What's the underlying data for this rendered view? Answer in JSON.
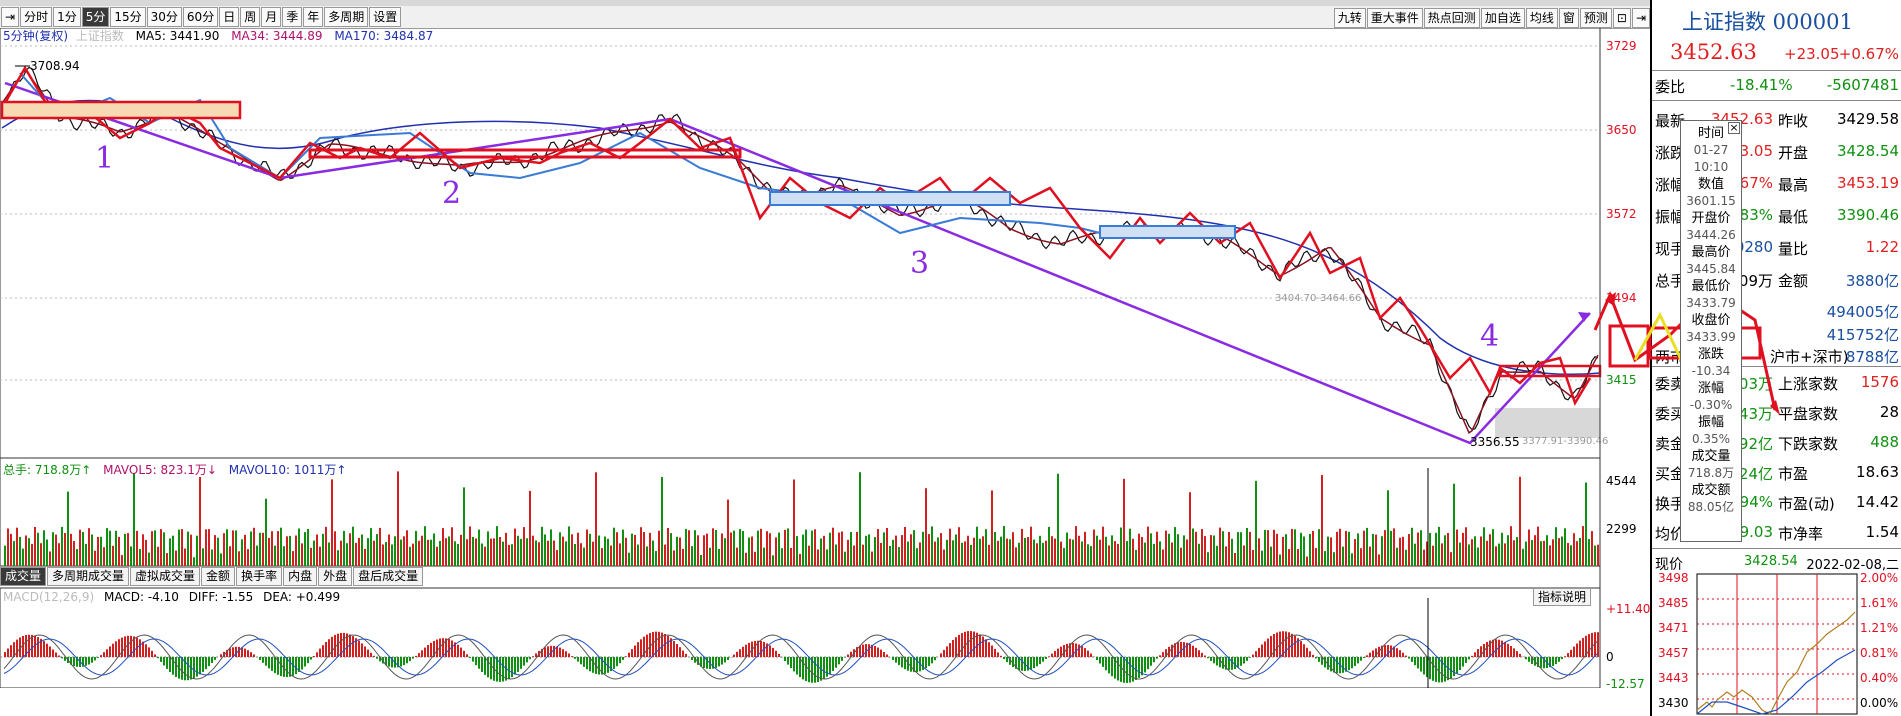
{
  "toolbar": {
    "periods": [
      "分时",
      "1分",
      "5分",
      "15分",
      "30分",
      "60分",
      "日",
      "周",
      "月",
      "季",
      "年",
      "多周期",
      "设置"
    ],
    "active_period": "5分",
    "right_buttons": [
      "九转",
      "重大事件",
      "热点回测",
      "加自选",
      "均线",
      "窗",
      "预测"
    ]
  },
  "main_chart": {
    "legend_period": "5分钟(复权)",
    "legend_index": "上证指数",
    "ma5": "MA5: 3441.90",
    "ma34": "MA34: 3444.89",
    "ma170": "MA170: 3484.87",
    "high_label": "3708.94",
    "low_label": "3356.55",
    "ref_label": "3404.70-3464.66",
    "ref_label2": "3377.91-3390.46",
    "y_ticks": [
      "3729",
      "3650",
      "3572",
      "3494",
      "3415"
    ],
    "wave_labels": [
      "1",
      "2",
      "3",
      "4"
    ]
  },
  "volume_chart": {
    "legend_total": "总手: 718.8万↑",
    "legend_mavol5": "MAVOL5: 823.1万↓",
    "legend_mavol10": "MAVOL10: 1011万↑",
    "y_ticks": [
      "4544",
      "2299"
    ]
  },
  "subtabs": {
    "items": [
      "成交量",
      "多周期成交量",
      "虚拟成交量",
      "金额",
      "换手率",
      "内盘",
      "外盘",
      "盘后成交量"
    ],
    "active": "成交量"
  },
  "macd_chart": {
    "legend_name": "MACD(12,26,9)",
    "legend_macd": "MACD: -4.10",
    "legend_diff": "DIFF: -1.55",
    "legend_dea": "DEA: +0.499",
    "help_button": "指标说明",
    "y_ticks": [
      "+11.40",
      "0",
      "-12.57"
    ]
  },
  "popup": {
    "time_label": "时间",
    "date": "01-27",
    "time": "10:10",
    "value_label": "数值",
    "value": "3601.15",
    "open_label": "开盘价",
    "open": "3444.26",
    "high_label": "最高价",
    "high": "3445.84",
    "low_label": "最低价",
    "low": "3433.79",
    "close_label": "收盘价",
    "close": "3433.99",
    "change_label": "涨跌",
    "change": "-10.34",
    "pct_label": "涨幅",
    "pct": "-0.30%",
    "amp_label": "振幅",
    "amp": "0.35%",
    "vol_label": "成交量",
    "vol": "718.8万",
    "amt_label": "成交额",
    "amt": "88.05亿"
  },
  "quote_panel": {
    "name": "上证指数 000001",
    "price": "3452.63",
    "change": "+23.05",
    "change_pct": "+0.67%",
    "webi_label": "委比",
    "webi_pct": "-18.41%",
    "webi_val": "-5607481",
    "rows": [
      {
        "k": "最新",
        "v1": "3452.63",
        "k2": "昨收",
        "v2": "3429.58"
      },
      {
        "k": "涨跌",
        "v1": "23.05",
        "k2": "开盘",
        "v2": "3428.54"
      },
      {
        "k": "涨幅",
        "v1": ".67%",
        "k2": "最高",
        "v2": "3453.19"
      },
      {
        "k": "振幅",
        "v1": ".83%",
        "k2": "最低",
        "v2": "3390.46"
      },
      {
        "k": "现手",
        "v1": "0280",
        "k2": "量比",
        "v2": "1.22"
      },
      {
        "k": "总手",
        "v1": "09万",
        "k2": "金额",
        "v2": "3880亿"
      }
    ],
    "row_extra_1": "494005亿",
    "row_extra_2": "415752亿",
    "two_market_label": "两市",
    "two_market_mid": "沪市+深市)",
    "two_market_val": "8788亿",
    "rows2": [
      {
        "k": "委卖",
        "v1": "03万",
        "k2": "上涨家数",
        "v2": "1576"
      },
      {
        "k": "委买",
        "v1": "43万",
        "k2": "平盘家数",
        "v2": "28"
      },
      {
        "k": "卖金",
        "v1": "92亿",
        "k2": "下跌家数",
        "v2": "488"
      },
      {
        "k": "买金",
        "v1": "24亿",
        "k2": "市盈",
        "v2": "18.63"
      },
      {
        "k": "换手",
        "v1": ".94%",
        "k2": "市盈(动)",
        "v2": "14.42"
      },
      {
        "k": "均价",
        "v1": "29.03",
        "k2": "市净率",
        "v2": "1.54"
      }
    ],
    "mini_label": "现价",
    "mini_price": "3428.54",
    "mini_date": "2022-02-08,二",
    "mini_left_ticks": [
      "3498",
      "3485",
      "3471",
      "3457",
      "3443",
      "3430"
    ],
    "mini_right_ticks": [
      "2.00%",
      "1.61%",
      "1.21%",
      "0.81%",
      "0.40%",
      "0.00%"
    ]
  }
}
